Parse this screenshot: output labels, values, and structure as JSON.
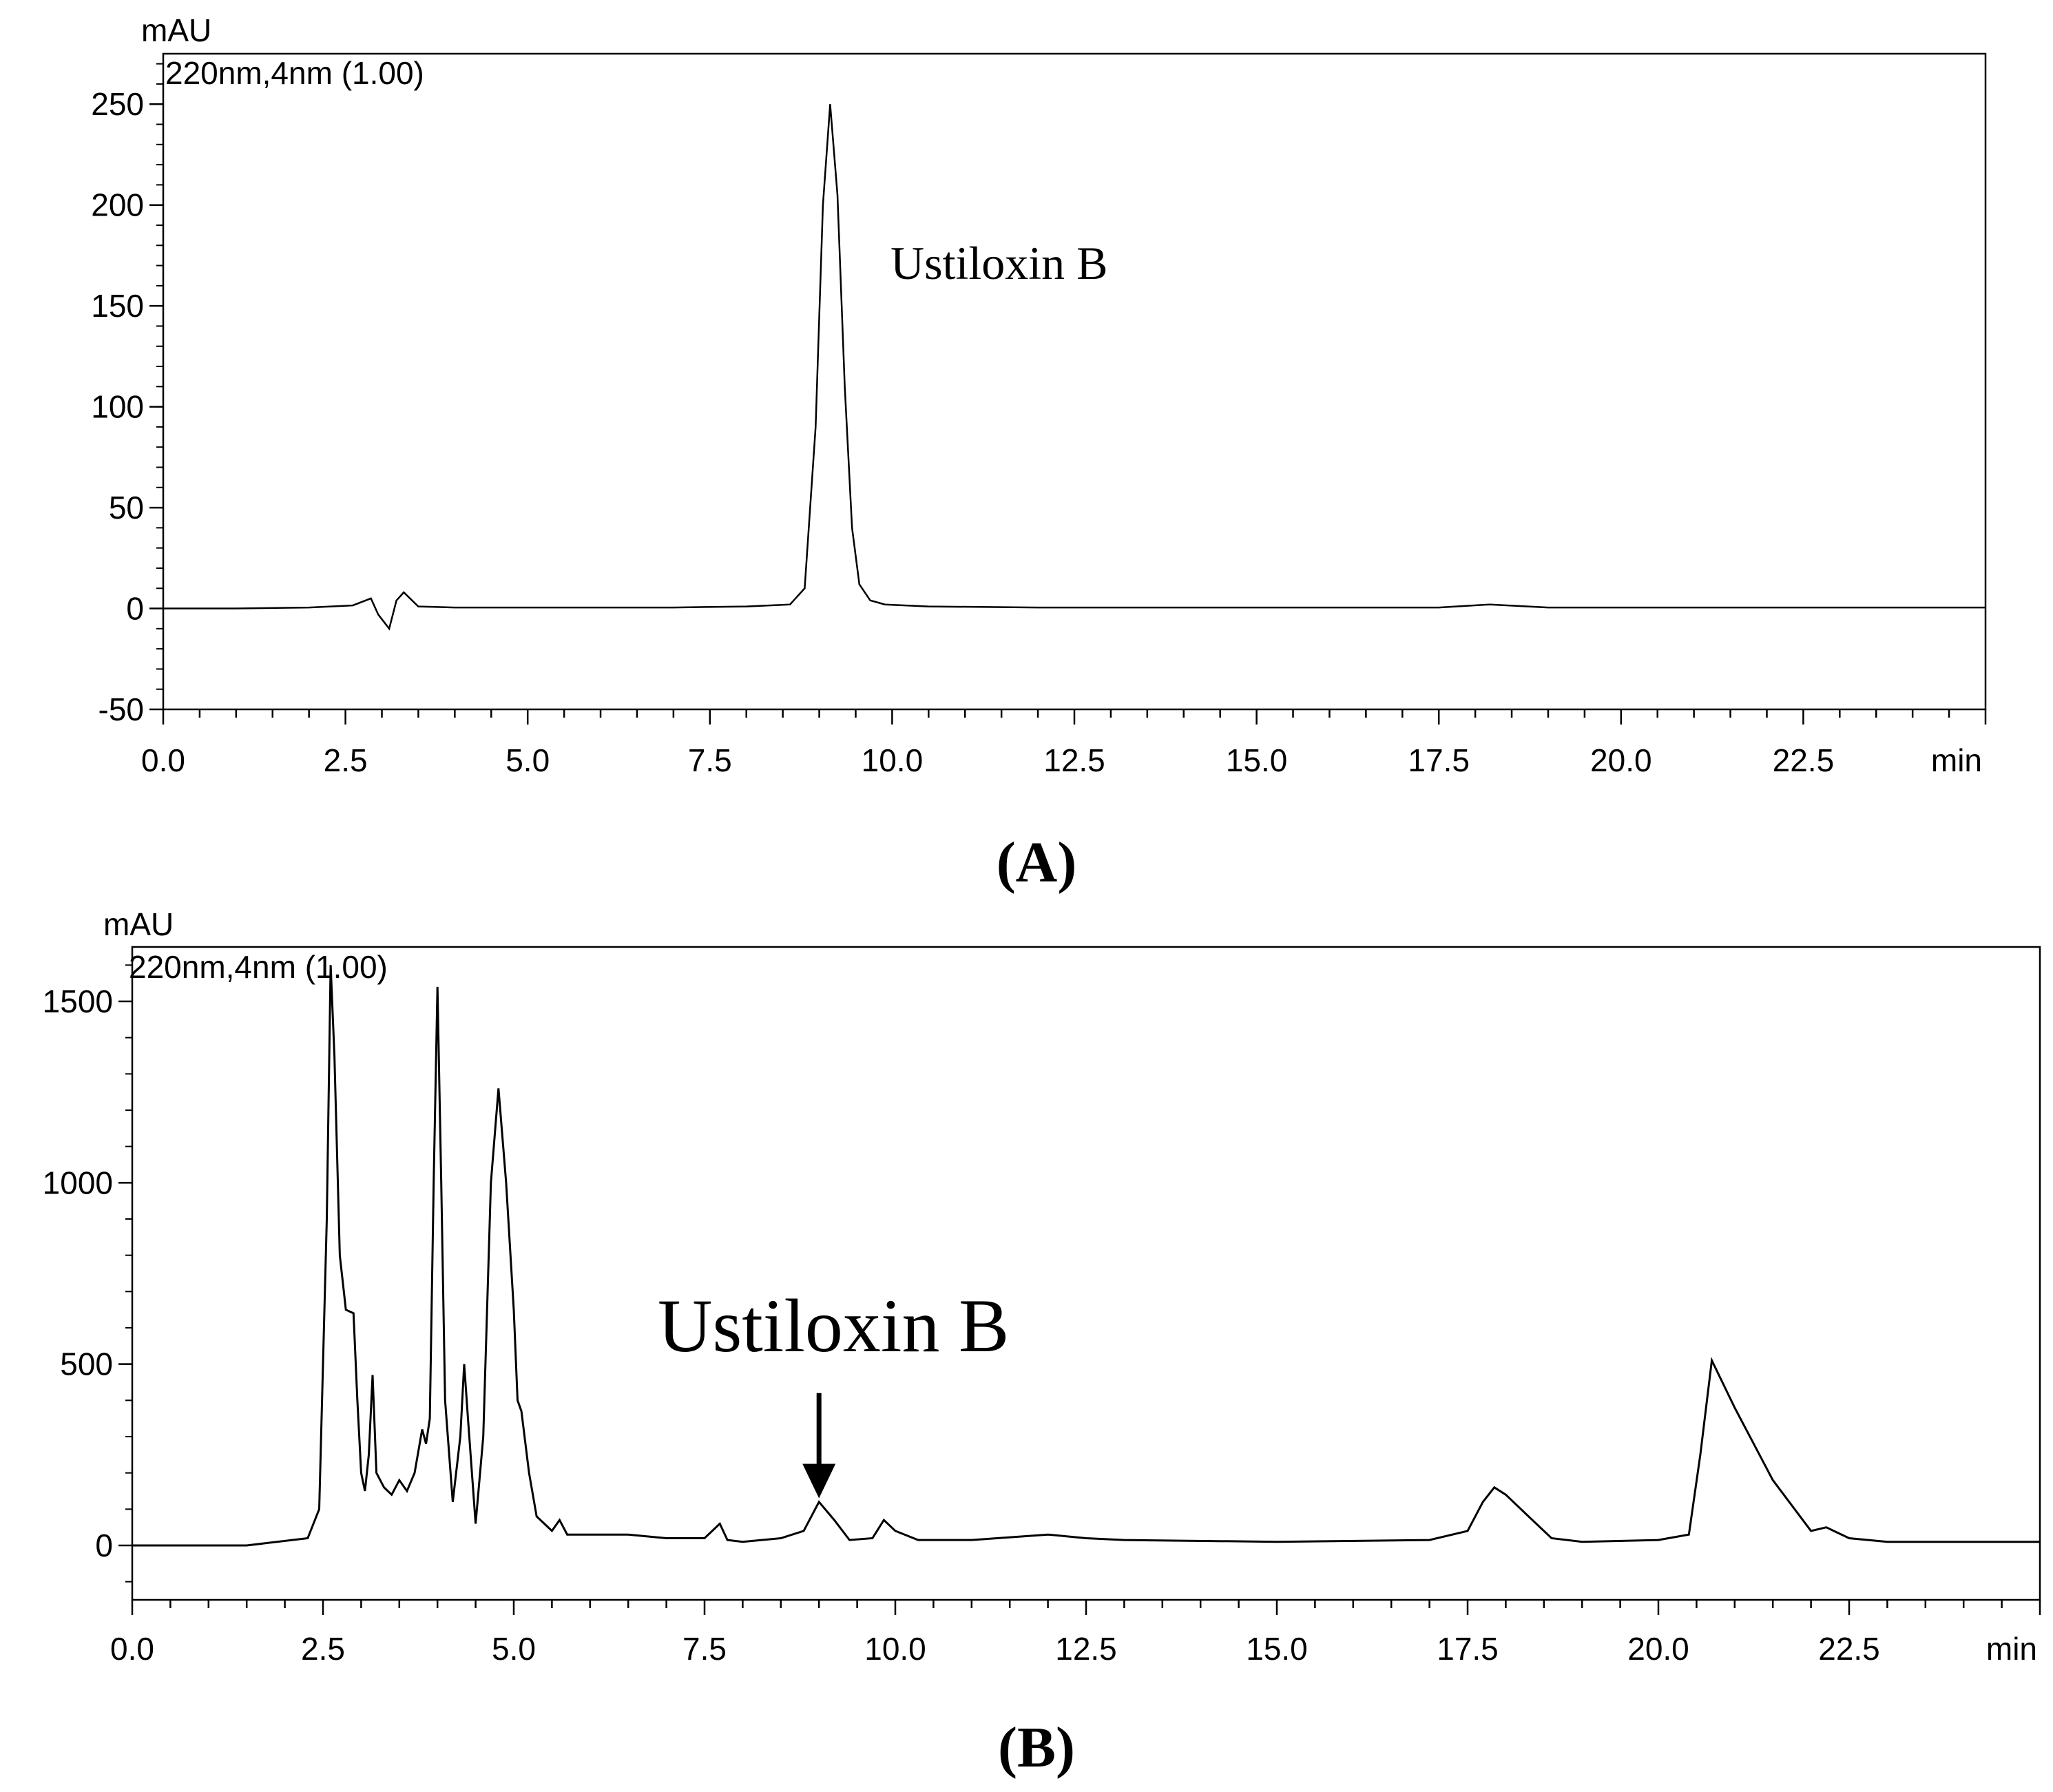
{
  "chart_data": [
    {
      "panel": "(A)",
      "type": "line",
      "header": "220nm,4nm (1.00)",
      "ylabel": "mAU",
      "xlabel": "min",
      "xlim": [
        0,
        25
      ],
      "ylim": [
        -50,
        275
      ],
      "x_ticks": [
        "0.0",
        "2.5",
        "5.0",
        "7.5",
        "10.0",
        "12.5",
        "15.0",
        "17.5",
        "20.0",
        "22.5"
      ],
      "y_ticks": [
        "-50",
        "0",
        "50",
        "100",
        "150",
        "200",
        "250"
      ],
      "annotations": [
        {
          "text": "Ustiloxin  B",
          "x": 10.0,
          "y": 165
        }
      ],
      "series": [
        {
          "x": [
            0.0,
            1.0,
            2.0,
            2.6,
            2.85,
            2.95,
            3.1,
            3.2,
            3.3,
            3.5,
            4.0,
            5.0,
            6.0,
            7.0,
            8.0,
            8.6,
            8.8,
            8.95,
            9.05,
            9.15,
            9.25,
            9.35,
            9.45,
            9.55,
            9.7,
            9.9,
            10.5,
            12.0,
            15.0,
            17.5,
            18.2,
            19.0,
            22.0,
            25.0
          ],
          "y": [
            0,
            0,
            0.5,
            1.5,
            5,
            -3,
            -10,
            4,
            8,
            1,
            0.5,
            0.5,
            0.5,
            0.5,
            1,
            2,
            10,
            90,
            200,
            250,
            205,
            110,
            40,
            12,
            4,
            2,
            1,
            0.5,
            0.5,
            0.5,
            2,
            0.5,
            0.5,
            0.5
          ]
        }
      ]
    },
    {
      "panel": "(B)",
      "type": "line",
      "header": "220nm,4nm (1.00)",
      "ylabel": "mAU",
      "xlabel": "min",
      "xlim": [
        0,
        25
      ],
      "ylim": [
        -150,
        1650
      ],
      "x_ticks": [
        "0.0",
        "2.5",
        "5.0",
        "7.5",
        "10.0",
        "12.5",
        "15.0",
        "17.5",
        "20.0",
        "22.5"
      ],
      "y_ticks": [
        "0",
        "500",
        "1000",
        "1500"
      ],
      "annotations": [
        {
          "text": "Ustiloxin B",
          "x": 9.0,
          "y": 420,
          "arrow_to": {
            "x": 9.0,
            "y": 130
          }
        }
      ],
      "series": [
        {
          "x": [
            0.0,
            1.5,
            2.3,
            2.45,
            2.55,
            2.6,
            2.65,
            2.72,
            2.8,
            2.9,
            2.95,
            3.0,
            3.05,
            3.1,
            3.15,
            3.2,
            3.3,
            3.4,
            3.5,
            3.6,
            3.7,
            3.8,
            3.85,
            3.9,
            3.95,
            4.0,
            4.05,
            4.1,
            4.2,
            4.3,
            4.35,
            4.4,
            4.5,
            4.6,
            4.7,
            4.8,
            4.9,
            5.0,
            5.05,
            5.1,
            5.2,
            5.3,
            5.5,
            5.6,
            5.7,
            6.0,
            6.5,
            7.0,
            7.5,
            7.7,
            7.8,
            8.0,
            8.5,
            8.8,
            9.0,
            9.2,
            9.4,
            9.7,
            9.85,
            10.0,
            10.3,
            11.0,
            12.0,
            12.5,
            13.0,
            15.0,
            17.0,
            17.5,
            17.7,
            17.85,
            18.0,
            18.3,
            18.6,
            19.0,
            20.0,
            20.4,
            20.55,
            20.7,
            21.0,
            21.5,
            22.0,
            22.2,
            22.5,
            23.0,
            25.0
          ],
          "y": [
            0,
            0,
            20,
            100,
            900,
            1600,
            1350,
            800,
            650,
            640,
            400,
            200,
            150,
            250,
            470,
            200,
            160,
            140,
            180,
            150,
            200,
            320,
            280,
            350,
            1000,
            1540,
            1000,
            400,
            120,
            300,
            500,
            350,
            60,
            300,
            1000,
            1260,
            1000,
            650,
            400,
            370,
            200,
            80,
            40,
            70,
            30,
            30,
            30,
            20,
            20,
            60,
            15,
            10,
            20,
            40,
            120,
            70,
            15,
            20,
            70,
            40,
            15,
            15,
            30,
            20,
            15,
            10,
            15,
            40,
            120,
            160,
            140,
            80,
            20,
            10,
            15,
            30,
            250,
            510,
            380,
            180,
            40,
            50,
            20,
            10,
            10
          ]
        }
      ]
    }
  ],
  "figure_labels": [
    "(A)",
    "(B)"
  ]
}
